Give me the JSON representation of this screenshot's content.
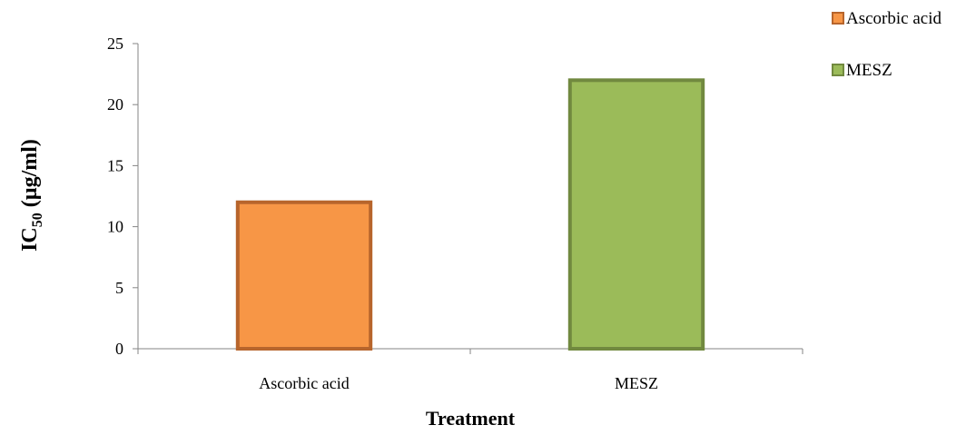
{
  "chart_data": {
    "type": "bar",
    "categories": [
      "Ascorbic acid",
      "MESZ"
    ],
    "values": [
      12,
      22
    ],
    "xlabel": "Treatment",
    "ylabel": {
      "main": "IC",
      "subscript": "50",
      "rest": " (µg/ml)"
    },
    "ylim": [
      0,
      25
    ],
    "yticks": [
      0,
      5,
      10,
      15,
      20,
      25
    ],
    "grid": false,
    "legend": {
      "placement": "top-right",
      "entries": [
        "Ascorbic acid",
        "MESZ"
      ]
    },
    "colors": {
      "Ascorbic acid": {
        "fill": "#F79646",
        "stroke": "#B7652C"
      },
      "MESZ": {
        "fill": "#9BBB59",
        "stroke": "#71893F"
      }
    }
  }
}
